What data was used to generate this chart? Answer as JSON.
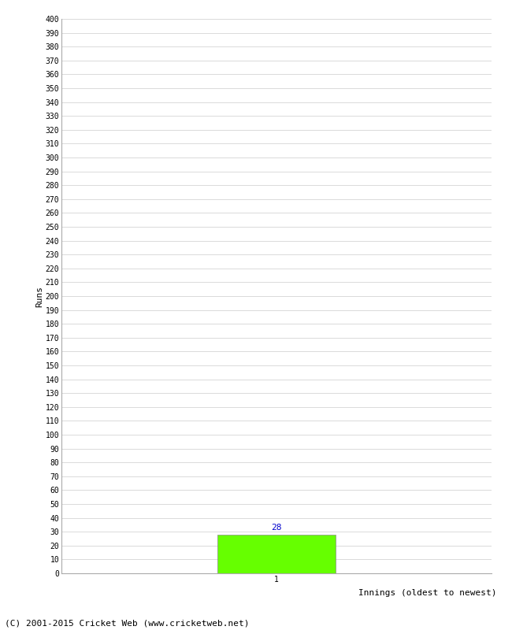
{
  "xlabel": "Innings (oldest to newest)",
  "ylabel": "Runs",
  "bar_values": [
    28
  ],
  "bar_positions": [
    1
  ],
  "bar_color": "#66ff00",
  "bar_edgecolor": "#888888",
  "bar_width": 0.55,
  "value_label_color": "#0000cc",
  "ylim": [
    0,
    400
  ],
  "xlim": [
    0.0,
    2.0
  ],
  "xtick_labels": [
    "1"
  ],
  "background_color": "#ffffff",
  "grid_color": "#cccccc",
  "footer_text": "(C) 2001-2015 Cricket Web (www.cricketweb.net)",
  "spine_color": "#aaaaaa"
}
